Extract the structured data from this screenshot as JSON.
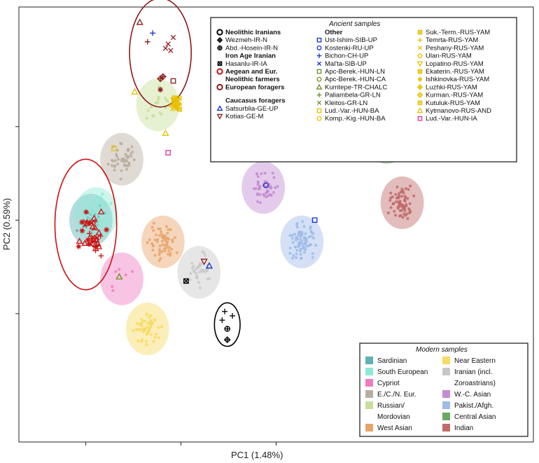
{
  "chart_data": {
    "type": "scatter",
    "xlabel": "PC1 (1.48%)",
    "ylabel": "PC2 (0.59%)",
    "xlim": [
      -1,
      1
    ],
    "ylim": [
      -1,
      1
    ],
    "ancient_legend": {
      "title": "Ancient samples",
      "columns": [
        [
          {
            "label": "Neolithic Iranians",
            "symbol": "ring",
            "color": "#000000",
            "head": true
          },
          {
            "label": "Wezmeh-IR-N",
            "symbol": "diamond-cross",
            "color": "#000000"
          },
          {
            "label": "Abd.-Hosein-IR-N",
            "symbol": "circle-plus",
            "color": "#000000"
          },
          {
            "label": "Iron Age Iranian",
            "symbol": "none",
            "color": "#000000",
            "head": true
          },
          {
            "label": "Hasanlu-IR-IA",
            "symbol": "square-x",
            "color": "#000000"
          },
          {
            "label": "Aegean and Eur.",
            "symbol": "ring",
            "color": "#cc1111",
            "head": true
          },
          {
            "label": "Neolithic farmers",
            "symbol": "none",
            "color": "#000000",
            "head": true
          },
          {
            "label": "European foragers",
            "symbol": "ring",
            "color": "#8b1a1a",
            "head": true
          },
          {
            "label": "Caucasus foragers",
            "symbol": "none",
            "color": "#000000",
            "head": true
          },
          {
            "label": "Satsurblia-GE-UP",
            "symbol": "triangle",
            "color": "#1133cc"
          },
          {
            "label": "Kotias-GE-M",
            "symbol": "triangle-down",
            "color": "#8b1a1a"
          }
        ],
        [
          {
            "label": "Other",
            "symbol": "none",
            "color": "#000000",
            "head": true
          },
          {
            "label": "Ust-Ishim-SIB-UP",
            "symbol": "square",
            "color": "#1133cc"
          },
          {
            "label": "Kostenki-RU-UP",
            "symbol": "circle",
            "color": "#1133cc"
          },
          {
            "label": "Bichon-CH-UP",
            "symbol": "plus",
            "color": "#1133cc"
          },
          {
            "label": "Mal'ta-SIB-UP",
            "symbol": "x",
            "color": "#1133cc"
          },
          {
            "label": "Apc-Berek.-HUN-LN",
            "symbol": "square",
            "color": "#6b8e23"
          },
          {
            "label": "Apc-Berek.-HUN-CA",
            "symbol": "circle",
            "color": "#6b8e23"
          },
          {
            "label": "Kumtepe-TR-CHALC",
            "symbol": "triangle",
            "color": "#6b8e23"
          },
          {
            "label": "Paliambela-GR-LN",
            "symbol": "plus",
            "color": "#6b8e23"
          },
          {
            "label": "Kleitos-GR-LN",
            "symbol": "x",
            "color": "#6b8e23"
          },
          {
            "label": "Lud.-Var.-HUN-BA",
            "symbol": "square",
            "color": "#e8c000"
          },
          {
            "label": "Komp.-Kig.-HUN-BA",
            "symbol": "circle",
            "color": "#e8c000"
          }
        ],
        [
          {
            "label": "Suk.-Term.-RUS-YAM",
            "symbol": "square-x",
            "color": "#e8c000"
          },
          {
            "label": "Temrta-RUS-YAM",
            "symbol": "plus",
            "color": "#e8c000"
          },
          {
            "label": "Peshany-RUS-YAM",
            "symbol": "x",
            "color": "#e8c000"
          },
          {
            "label": "Ulan-RUS-YAM",
            "symbol": "diamond",
            "color": "#e8c000"
          },
          {
            "label": "Lopatino-RUS-YAM",
            "symbol": "triangle-down",
            "color": "#e8c000"
          },
          {
            "label": "Ekaterin.-RUS-YAM",
            "symbol": "square-x",
            "color": "#e8c000"
          },
          {
            "label": "Ishkinovka-RUS-YAM",
            "symbol": "asterisk",
            "color": "#e8c000"
          },
          {
            "label": "Luzhki-RUS-YAM",
            "symbol": "diamond-cross",
            "color": "#e8c000"
          },
          {
            "label": "Kurman.-RUS-YAM",
            "symbol": "circle-plus",
            "color": "#e8c000"
          },
          {
            "label": "Kutuluk-RUS-YAM",
            "symbol": "square-plus",
            "color": "#e8c000"
          },
          {
            "label": "Kytmanovo-RUS-AND",
            "symbol": "triangle",
            "color": "#e8c000"
          },
          {
            "label": "Lud.-Var.-HUN-IA",
            "symbol": "square",
            "color": "#e0338f"
          }
        ]
      ]
    },
    "modern_legend": {
      "title": "Modern samples",
      "items": [
        {
          "label": "Sardinian",
          "color": "#5fb0b7"
        },
        {
          "label": "Near Eastern",
          "color": "#f7da63"
        },
        {
          "label": "South European",
          "color": "#8fe8d4"
        },
        {
          "label": "Iranian (incl.",
          "color": "#c8c8c8"
        },
        {
          "label": "Cypriot",
          "color": "#f07cc0"
        },
        {
          "label": "Zoroastrians)",
          "color": null
        },
        {
          "label": "E./C./N. Eur.",
          "color": "#b8ae9f"
        },
        {
          "label": "W.-C. Asian",
          "color": "#c48cd2"
        },
        {
          "label": "Russian/",
          "color": "#c7df9a"
        },
        {
          "label": "Pakist./Afgh.",
          "color": "#9fbbe8"
        },
        {
          "label": "Mordovian",
          "color": null
        },
        {
          "label": "Central Asian",
          "color": "#6aa865"
        },
        {
          "label": "West Asian",
          "color": "#e8a46b"
        },
        {
          "label": "Indian",
          "color": "#c06a6a"
        }
      ]
    },
    "modern_clusters": [
      {
        "name": "Sardinian",
        "color": "#5fb0b7",
        "cx": -0.72,
        "cy": 0.02,
        "n": 20
      },
      {
        "name": "South European",
        "color": "#8fe8d4",
        "cx": -0.7,
        "cy": 0.05,
        "n": 40
      },
      {
        "name": "Cypriot",
        "color": "#f07cc0",
        "cx": -0.6,
        "cy": -0.25,
        "n": 6
      },
      {
        "name": "E./C./N. Eur.",
        "color": "#b8ae9f",
        "cx": -0.6,
        "cy": 0.3,
        "n": 45
      },
      {
        "name": "Russian/Mordovian",
        "color": "#c7df9a",
        "cx": -0.46,
        "cy": 0.55,
        "n": 18
      },
      {
        "name": "West Asian",
        "color": "#e8a46b",
        "cx": -0.44,
        "cy": -0.08,
        "n": 60
      },
      {
        "name": "Near Eastern",
        "color": "#f7da63",
        "cx": -0.5,
        "cy": -0.48,
        "n": 55
      },
      {
        "name": "Iranian (incl. Zoroastrians)",
        "color": "#c8c8c8",
        "cx": -0.3,
        "cy": -0.22,
        "n": 35
      },
      {
        "name": "W.-C. Asian",
        "color": "#c48cd2",
        "cx": -0.05,
        "cy": 0.17,
        "n": 45
      },
      {
        "name": "Pakist./Afgh.",
        "color": "#9fbbe8",
        "cx": 0.1,
        "cy": -0.08,
        "n": 80
      },
      {
        "name": "Central Asian",
        "color": "#6aa865",
        "cx": 0.43,
        "cy": 0.4,
        "n": 60
      },
      {
        "name": "Indian",
        "color": "#c06a6a",
        "cx": 0.49,
        "cy": 0.1,
        "n": 70
      }
    ],
    "ancient_points": [
      {
        "group": "Kotias-GE-M",
        "symbol": "triangle",
        "color": "#8b1a1a",
        "x": -0.53,
        "y": 0.93
      },
      {
        "group": "Bichon-CH-UP",
        "symbol": "plus",
        "color": "#1133cc",
        "x": -0.48,
        "y": 0.88
      },
      {
        "group": "European foragers",
        "symbol": "plus",
        "color": "#8b1a1a",
        "x": -0.5,
        "y": 0.84
      },
      {
        "group": "European foragers",
        "symbol": "x",
        "color": "#8b1a1a",
        "x": -0.4,
        "y": 0.86
      },
      {
        "group": "European foragers",
        "symbol": "x",
        "color": "#8b1a1a",
        "x": -0.42,
        "y": 0.83
      },
      {
        "group": "European foragers",
        "symbol": "x",
        "color": "#8b1a1a",
        "x": -0.41,
        "y": 0.8
      },
      {
        "group": "European foragers",
        "symbol": "x",
        "color": "#8b1a1a",
        "x": -0.43,
        "y": 0.81
      },
      {
        "group": "European foragers",
        "symbol": "diamond-cross",
        "color": "#8b1a1a",
        "x": -0.44,
        "y": 0.68
      },
      {
        "group": "European foragers",
        "symbol": "diamond-cross",
        "color": "#8b1a1a",
        "x": -0.45,
        "y": 0.67
      },
      {
        "group": "European foragers",
        "symbol": "square",
        "color": "#8b1a1a",
        "x": -0.4,
        "y": 0.66
      },
      {
        "group": "European foragers",
        "symbol": "asterisk",
        "color": "#8b1a1a",
        "x": -0.45,
        "y": 0.62
      },
      {
        "group": "Mal'ta-SIB-UP",
        "symbol": "x",
        "color": "#1133cc",
        "x": -0.01,
        "y": 0.66
      },
      {
        "group": "Kytmanovo-RUS-AND",
        "symbol": "triangle",
        "color": "#e8c000",
        "x": -0.13,
        "y": 0.64
      },
      {
        "group": "Ust-Ishim-SIB-UP",
        "symbol": "square",
        "color": "#1133cc",
        "x": 0.15,
        "y": 0.02
      },
      {
        "group": "Satsurblia-GE-UP",
        "symbol": "triangle",
        "color": "#1133cc",
        "x": -0.26,
        "y": -0.19
      },
      {
        "group": "Kotias-GE-M",
        "symbol": "triangle-down",
        "color": "#8b1a1a",
        "x": -0.28,
        "y": -0.17
      },
      {
        "group": "Hasanlu-IR-IA",
        "symbol": "square-x",
        "color": "#000000",
        "x": -0.35,
        "y": -0.26
      },
      {
        "group": "Lud.-Var.-HUN-IA",
        "symbol": "square",
        "color": "#e0338f",
        "x": -0.42,
        "y": 0.33
      },
      {
        "group": "Kumtepe-TR-CHALC",
        "symbol": "triangle",
        "color": "#6b8e23",
        "x": -0.61,
        "y": -0.24
      },
      {
        "group": "Lud.-Var.-HUN-BA",
        "symbol": "square",
        "color": "#e8c000",
        "x": -0.63,
        "y": 0.35
      },
      {
        "group": "Kytmanovo-RUS-AND",
        "symbol": "triangle",
        "color": "#e8c000",
        "x": -0.55,
        "y": 0.61
      },
      {
        "group": "Kytmanovo-RUS-AND",
        "symbol": "triangle",
        "color": "#e8c000",
        "x": -0.43,
        "y": 0.42
      },
      {
        "group": "Kostenki-RU-UP",
        "symbol": "circle",
        "color": "#1133cc",
        "x": -0.04,
        "y": 0.18
      },
      {
        "group": "Wezmeh-IR-N",
        "symbol": "diamond-cross",
        "color": "#000000",
        "x": -0.19,
        "y": -0.53
      },
      {
        "group": "Abd.-Hosein-IR-N",
        "symbol": "circle-plus",
        "color": "#000000",
        "x": -0.19,
        "y": -0.48
      },
      {
        "group": "Abd.-Hosein-IR-N",
        "symbol": "plus",
        "color": "#000000",
        "x": -0.2,
        "y": -0.4
      },
      {
        "group": "Abd.-Hosein-IR-N",
        "symbol": "plus",
        "color": "#000000",
        "x": -0.17,
        "y": -0.42
      },
      {
        "group": "Abd.-Hosein-IR-N",
        "symbol": "plus",
        "color": "#000000",
        "x": -0.21,
        "y": -0.44
      }
    ],
    "yamnaya_cluster": {
      "color": "#e8c000",
      "cx": -0.39,
      "cy": 0.56,
      "n": 20
    },
    "aegean_cluster": {
      "color": "#cc1111",
      "cx": -0.72,
      "cy": -0.05,
      "n": 40
    },
    "ellipses": [
      {
        "name": "European foragers",
        "color": "#8b1a1a",
        "cx": -0.45,
        "cy": 0.79,
        "rx": 0.12,
        "ry": 0.25
      },
      {
        "name": "Aegean and Eur.",
        "color": "#cc1111",
        "cx": -0.74,
        "cy": 0.0,
        "rx": 0.12,
        "ry": 0.3
      },
      {
        "name": "Neolithic Iranians",
        "color": "#000000",
        "cx": -0.19,
        "cy": -0.46,
        "rx": 0.05,
        "ry": 0.1
      }
    ]
  }
}
